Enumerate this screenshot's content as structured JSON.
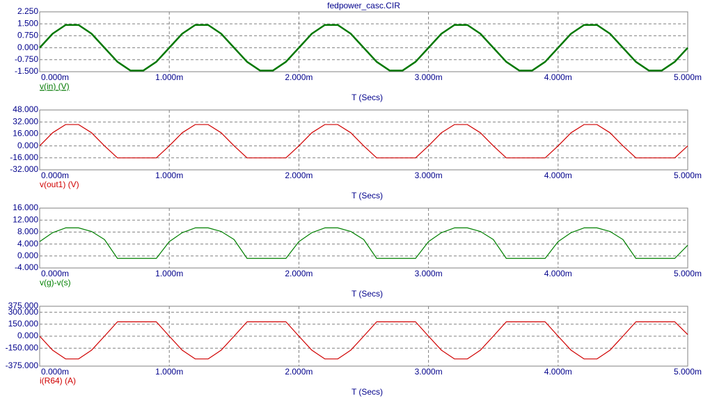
{
  "chart_data": [
    {
      "type": "line",
      "title": "fedpower_casc.CIR",
      "x_label": "T (Secs)",
      "grid": true,
      "x": [
        0,
        0.0001,
        0.0002,
        0.0003,
        0.0004,
        0.0005,
        0.0006,
        0.0007,
        0.0008,
        0.0009,
        0.001,
        0.0011,
        0.0012,
        0.0013,
        0.0014,
        0.0015,
        0.0016,
        0.0017,
        0.0018,
        0.0019,
        0.002,
        0.0021,
        0.0022,
        0.0023,
        0.0024,
        0.0025,
        0.0026,
        0.0027,
        0.0028,
        0.0029,
        0.003,
        0.0031,
        0.0032,
        0.0033,
        0.0034,
        0.0035,
        0.0036,
        0.0037,
        0.0038,
        0.0039,
        0.004,
        0.0041,
        0.0042,
        0.0043,
        0.0044,
        0.0045,
        0.0046,
        0.0047,
        0.0048,
        0.0049,
        0.005
      ],
      "xlim": [
        0,
        0.005
      ],
      "xticks": [
        {
          "value": 0,
          "label": "0.000m"
        },
        {
          "value": 0.001,
          "label": "1.000m"
        },
        {
          "value": 0.002,
          "label": "2.000m"
        },
        {
          "value": 0.003,
          "label": "3.000m"
        },
        {
          "value": 0.004,
          "label": "4.000m"
        },
        {
          "value": 0.005,
          "label": "5.000m"
        }
      ],
      "ylim": [
        -1.5,
        2.25
      ],
      "yticks": [
        {
          "value": 2.25,
          "label": "2.250"
        },
        {
          "value": 1.5,
          "label": "1.500"
        },
        {
          "value": 0.75,
          "label": "0.750"
        },
        {
          "value": 0,
          "label": "0.000"
        },
        {
          "value": -0.75,
          "label": "-0.750"
        },
        {
          "value": -1.5,
          "label": "-1.500"
        }
      ],
      "series": [
        {
          "name": "v(in) (V)",
          "color": "#007800",
          "values": [
            0,
            0.882,
            1.427,
            1.427,
            0.882,
            0,
            -0.882,
            -1.427,
            -1.427,
            -0.882,
            0,
            0.882,
            1.427,
            1.427,
            0.882,
            0,
            -0.882,
            -1.427,
            -1.427,
            -0.882,
            0,
            0.882,
            1.427,
            1.427,
            0.882,
            0,
            -0.882,
            -1.427,
            -1.427,
            -0.882,
            0,
            0.882,
            1.427,
            1.427,
            0.882,
            0,
            -0.882,
            -1.427,
            -1.427,
            -0.882,
            0,
            0.882,
            1.427,
            1.427,
            0.882,
            0,
            -0.882,
            -1.427,
            -1.427,
            -0.882,
            0
          ]
        }
      ]
    },
    {
      "type": "line",
      "x_label": "T (Secs)",
      "grid": true,
      "x": [
        0,
        0.0001,
        0.0002,
        0.0003,
        0.0004,
        0.0005,
        0.0006,
        0.0007,
        0.0008,
        0.0009,
        0.001,
        0.0011,
        0.0012,
        0.0013,
        0.0014,
        0.0015,
        0.0016,
        0.0017,
        0.0018,
        0.0019,
        0.002,
        0.0021,
        0.0022,
        0.0023,
        0.0024,
        0.0025,
        0.0026,
        0.0027,
        0.0028,
        0.0029,
        0.003,
        0.0031,
        0.0032,
        0.0033,
        0.0034,
        0.0035,
        0.0036,
        0.0037,
        0.0038,
        0.0039,
        0.004,
        0.0041,
        0.0042,
        0.0043,
        0.0044,
        0.0045,
        0.0046,
        0.0047,
        0.0048,
        0.0049,
        0.005
      ],
      "xlim": [
        0,
        0.005
      ],
      "xticks": [
        {
          "value": 0,
          "label": "0.000m"
        },
        {
          "value": 0.001,
          "label": "1.000m"
        },
        {
          "value": 0.002,
          "label": "2.000m"
        },
        {
          "value": 0.003,
          "label": "3.000m"
        },
        {
          "value": 0.004,
          "label": "4.000m"
        },
        {
          "value": 0.005,
          "label": "5.000m"
        }
      ],
      "ylim": [
        -32,
        48
      ],
      "yticks": [
        {
          "value": 48,
          "label": "48.000"
        },
        {
          "value": 32,
          "label": "32.000"
        },
        {
          "value": 16,
          "label": "16.000"
        },
        {
          "value": 0,
          "label": "0.000"
        },
        {
          "value": -16,
          "label": "-16.000"
        },
        {
          "value": -32,
          "label": "-32.000"
        }
      ],
      "series": [
        {
          "name": "v(out1) (V)",
          "color": "#d00000",
          "values": [
            0,
            17.6,
            28.5,
            28.5,
            17.6,
            0,
            -16,
            -16,
            -16,
            -16,
            0,
            17.6,
            28.5,
            28.5,
            17.6,
            0,
            -16,
            -16,
            -16,
            -16,
            0,
            17.6,
            28.5,
            28.5,
            17.6,
            0,
            -16,
            -16,
            -16,
            -16,
            0,
            17.6,
            28.5,
            28.5,
            17.6,
            0,
            -16,
            -16,
            -16,
            -16,
            0,
            17.6,
            28.5,
            28.5,
            17.6,
            0,
            -16,
            -16,
            -16,
            -16,
            0
          ]
        }
      ]
    },
    {
      "type": "line",
      "x_label": "T (Secs)",
      "grid": true,
      "x": [
        0,
        0.0001,
        0.0002,
        0.0003,
        0.0004,
        0.0005,
        0.0006,
        0.0007,
        0.0008,
        0.0009,
        0.001,
        0.0011,
        0.0012,
        0.0013,
        0.0014,
        0.0015,
        0.0016,
        0.0017,
        0.0018,
        0.0019,
        0.002,
        0.0021,
        0.0022,
        0.0023,
        0.0024,
        0.0025,
        0.0026,
        0.0027,
        0.0028,
        0.0029,
        0.003,
        0.0031,
        0.0032,
        0.0033,
        0.0034,
        0.0035,
        0.0036,
        0.0037,
        0.0038,
        0.0039,
        0.004,
        0.0041,
        0.0042,
        0.0043,
        0.0044,
        0.0045,
        0.0046,
        0.0047,
        0.0048,
        0.0049,
        0.005
      ],
      "xlim": [
        0,
        0.005
      ],
      "xticks": [
        {
          "value": 0,
          "label": "0.000m"
        },
        {
          "value": 0.001,
          "label": "1.000m"
        },
        {
          "value": 0.002,
          "label": "2.000m"
        },
        {
          "value": 0.003,
          "label": "3.000m"
        },
        {
          "value": 0.004,
          "label": "4.000m"
        },
        {
          "value": 0.005,
          "label": "5.000m"
        }
      ],
      "ylim": [
        -4,
        16
      ],
      "yticks": [
        {
          "value": 16,
          "label": "16.000"
        },
        {
          "value": 12,
          "label": "12.000"
        },
        {
          "value": 8,
          "label": "8.000"
        },
        {
          "value": 4,
          "label": "4.000"
        },
        {
          "value": 0,
          "label": "0.000"
        },
        {
          "value": -4,
          "label": "-4.000"
        }
      ],
      "series": [
        {
          "name": "v(g)-v(s)",
          "color": "#008000",
          "values": [
            4.8,
            7.8,
            9.4,
            9.4,
            8.2,
            5.5,
            -0.8,
            -0.8,
            -0.8,
            -0.8,
            4.8,
            7.8,
            9.4,
            9.4,
            8.2,
            5.5,
            -0.8,
            -0.8,
            -0.8,
            -0.8,
            4.8,
            7.8,
            9.4,
            9.4,
            8.2,
            5.5,
            -0.8,
            -0.8,
            -0.8,
            -0.8,
            4.8,
            7.8,
            9.4,
            9.4,
            8.2,
            5.5,
            -0.8,
            -0.8,
            -0.8,
            -0.8,
            4.8,
            7.8,
            9.4,
            9.4,
            8.2,
            5.5,
            -0.8,
            -0.8,
            -0.8,
            -0.8,
            3.6
          ]
        }
      ]
    },
    {
      "type": "line",
      "x_label": "T (Secs)",
      "grid": true,
      "x": [
        0,
        0.0001,
        0.0002,
        0.0003,
        0.0004,
        0.0005,
        0.0006,
        0.0007,
        0.0008,
        0.0009,
        0.001,
        0.0011,
        0.0012,
        0.0013,
        0.0014,
        0.0015,
        0.0016,
        0.0017,
        0.0018,
        0.0019,
        0.002,
        0.0021,
        0.0022,
        0.0023,
        0.0024,
        0.0025,
        0.0026,
        0.0027,
        0.0028,
        0.0029,
        0.003,
        0.0031,
        0.0032,
        0.0033,
        0.0034,
        0.0035,
        0.0036,
        0.0037,
        0.0038,
        0.0039,
        0.004,
        0.0041,
        0.0042,
        0.0043,
        0.0044,
        0.0045,
        0.0046,
        0.0047,
        0.0048,
        0.0049,
        0.005
      ],
      "xlim": [
        0,
        0.005
      ],
      "xticks": [
        {
          "value": 0,
          "label": "0.000m"
        },
        {
          "value": 0.001,
          "label": "1.000m"
        },
        {
          "value": 0.002,
          "label": "2.000m"
        },
        {
          "value": 0.003,
          "label": "3.000m"
        },
        {
          "value": 0.004,
          "label": "4.000m"
        },
        {
          "value": 0.005,
          "label": "5.000m"
        }
      ],
      "ylim": [
        -375,
        375
      ],
      "yticks": [
        {
          "value": 375,
          "label": "375.000"
        },
        {
          "value": 300,
          "label": "300.000"
        },
        {
          "value": 150,
          "label": "150.000"
        },
        {
          "value": 0,
          "label": "0.000"
        },
        {
          "value": -150,
          "label": "-150.000"
        },
        {
          "value": -375,
          "label": "-375.000"
        }
      ],
      "series": [
        {
          "name": "i(R64) (A)",
          "color": "#d00000",
          "values": [
            0,
            -176,
            -285,
            -285,
            -176,
            0,
            180,
            180,
            180,
            180,
            0,
            -176,
            -285,
            -285,
            -176,
            0,
            180,
            180,
            180,
            180,
            0,
            -176,
            -285,
            -285,
            -176,
            0,
            180,
            180,
            180,
            180,
            0,
            -176,
            -285,
            -285,
            -176,
            0,
            180,
            180,
            180,
            180,
            0,
            -176,
            -285,
            -285,
            -176,
            0,
            180,
            180,
            180,
            180,
            20
          ]
        }
      ]
    }
  ]
}
